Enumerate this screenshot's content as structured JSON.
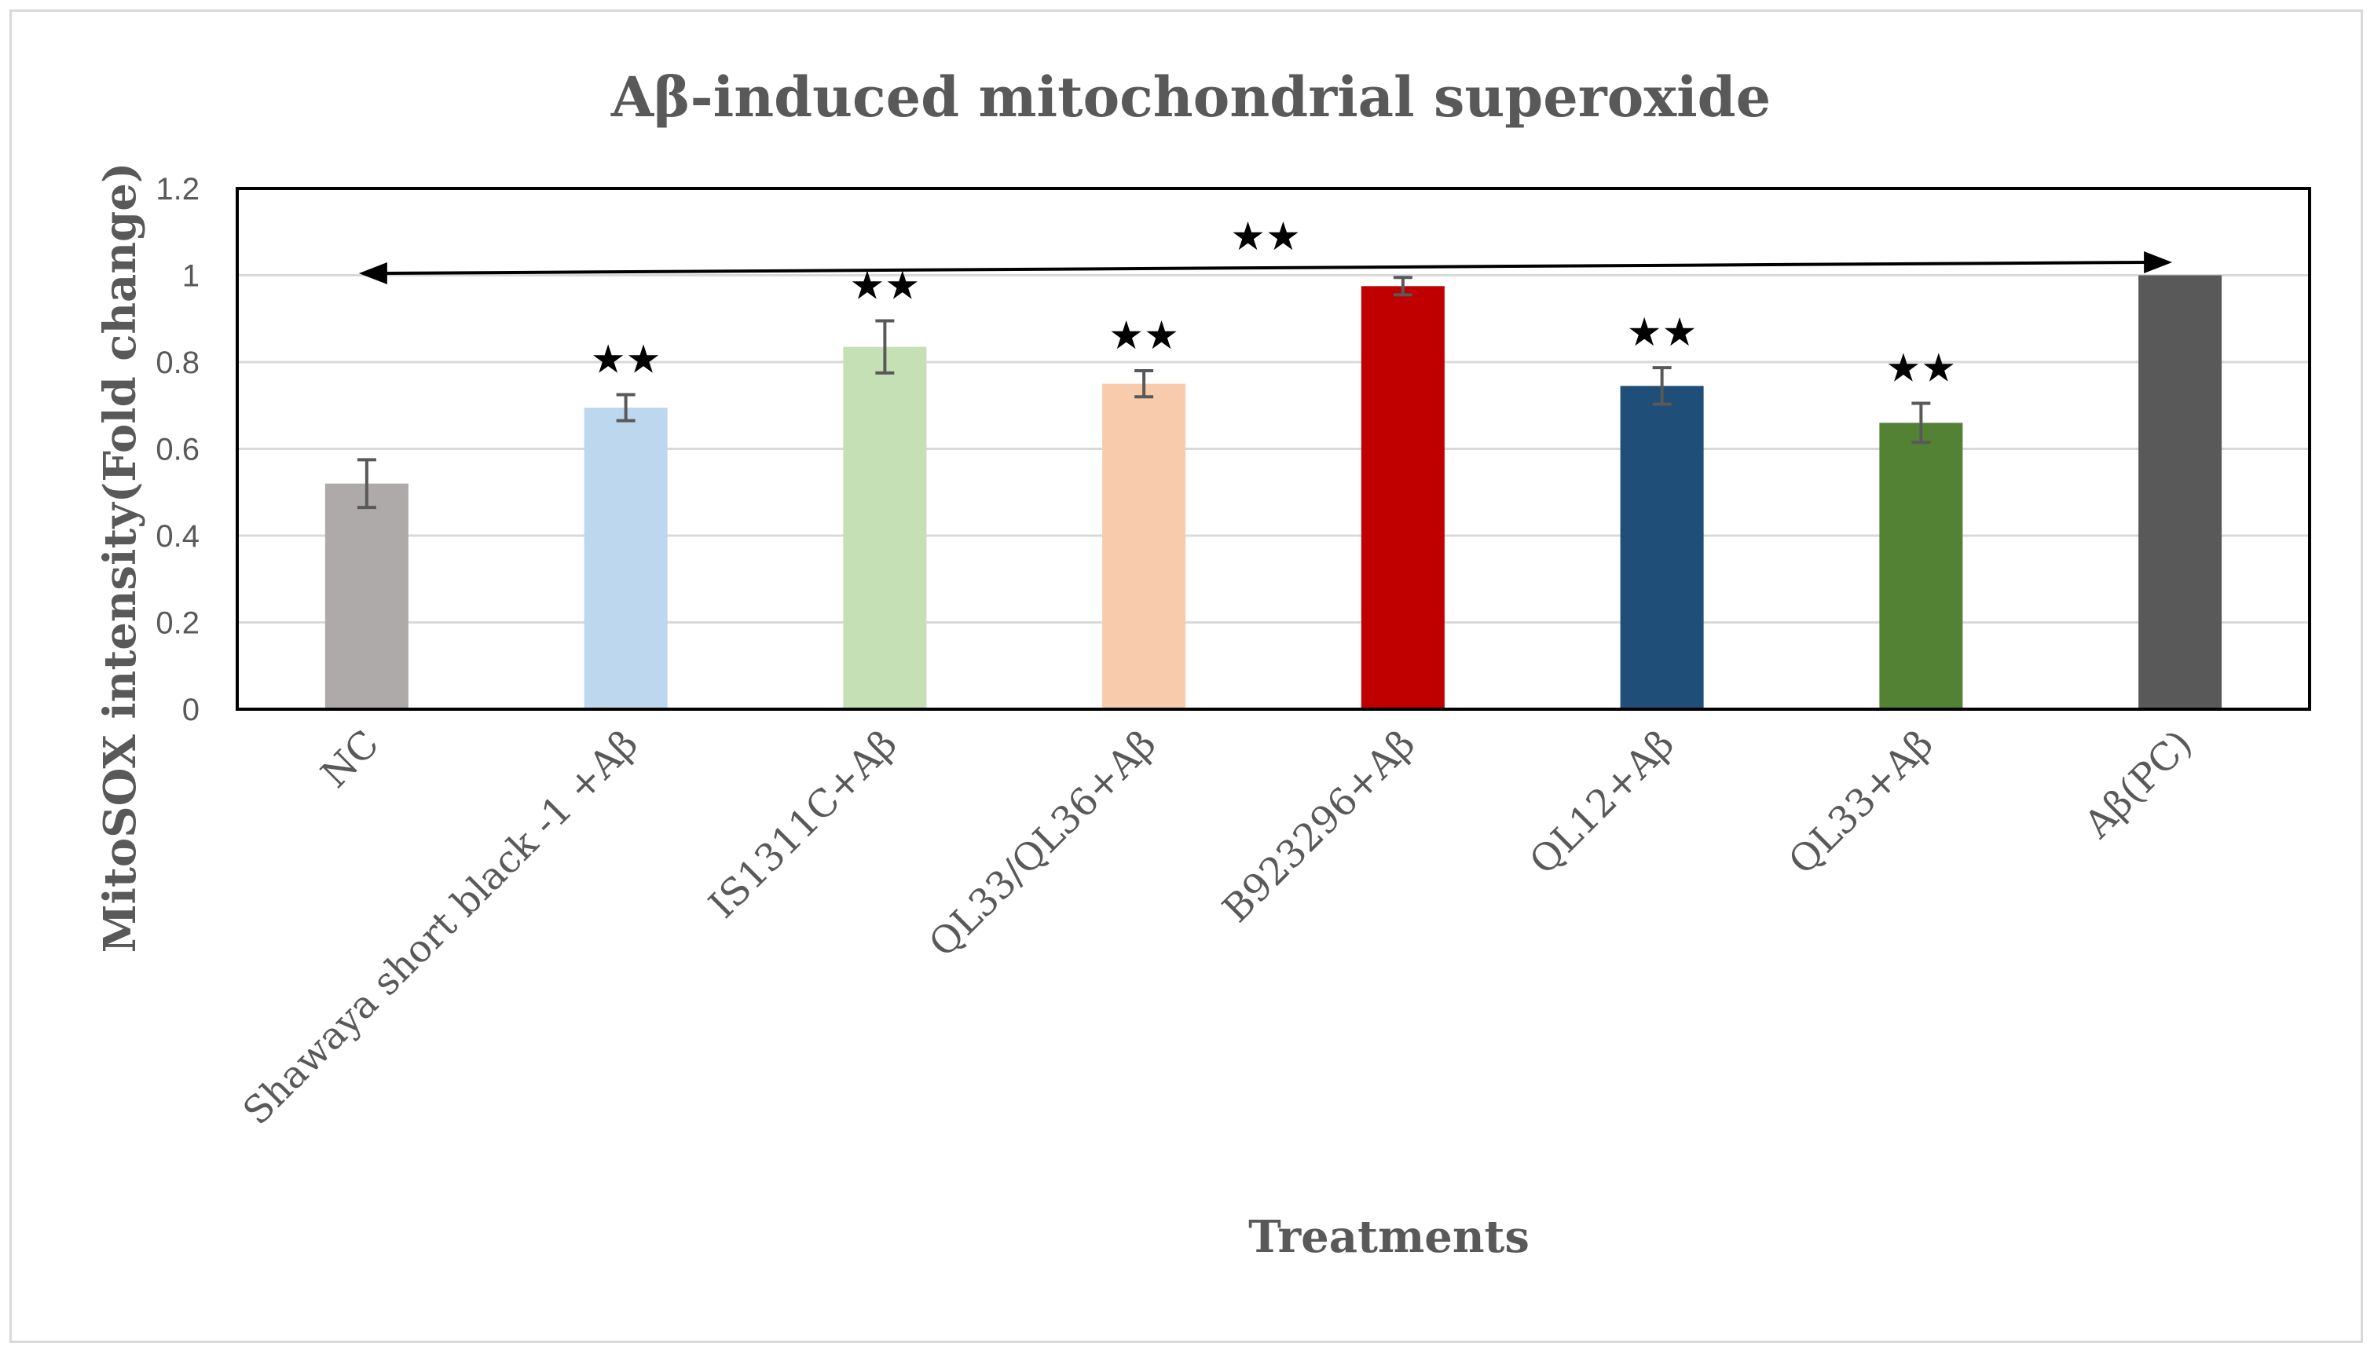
{
  "chart_data": {
    "type": "bar",
    "title": "Aβ-induced mitochondrial superoxide",
    "xlabel": "Treatments",
    "ylabel": "MitoSOX intensity(Fold change)",
    "ylim": [
      0,
      1.2
    ],
    "yticks": [
      "0",
      "0.2",
      "0.4",
      "0.6",
      "0.8",
      "1",
      "1.2"
    ],
    "ytick_values": [
      0,
      0.2,
      0.4,
      0.6,
      0.8,
      1.0,
      1.2
    ],
    "grid": true,
    "categories": [
      "NC",
      "Shawaya short black -1 +Aβ",
      "IS1311C+Aβ",
      "QL33/QL36+Aβ",
      "B923296+Aβ",
      "QL12+Aβ",
      "QL33+Aβ",
      "Aβ(PC)"
    ],
    "values": [
      0.52,
      0.695,
      0.835,
      0.75,
      0.975,
      0.745,
      0.66,
      1.0
    ],
    "errors": [
      0.055,
      0.03,
      0.06,
      0.03,
      0.02,
      0.042,
      0.045,
      0.0
    ],
    "colors": [
      "#aeaaaa",
      "#bdd7ee",
      "#c5e0b4",
      "#f8cbad",
      "#c00000",
      "#1f4e79",
      "#548235",
      "#595959"
    ],
    "significance": [
      "",
      "★★",
      "★★",
      "★★",
      "",
      "★★",
      "★★",
      ""
    ],
    "bracket": {
      "from": "NC",
      "to": "Aβ(PC)",
      "label": "★★"
    }
  }
}
